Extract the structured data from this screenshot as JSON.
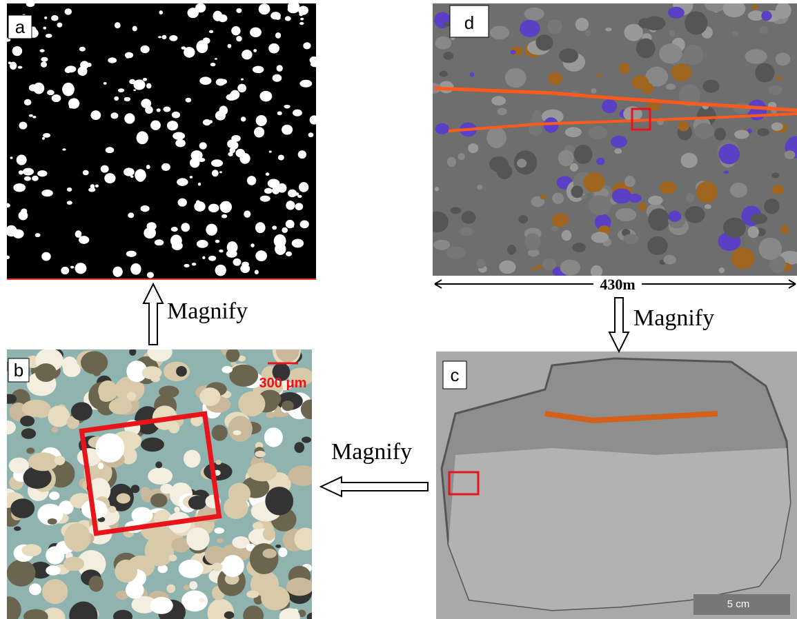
{
  "panels": [
    {
      "label": "a"
    },
    {
      "label": "b",
      "scale_bar": "300 μm"
    },
    {
      "label": "c",
      "scale_bar": "5 cm"
    },
    {
      "label": "d",
      "scale_bar": "430m"
    }
  ],
  "arrows": [
    {
      "label": "Magnify"
    },
    {
      "label": "Magnify"
    },
    {
      "label": "Magnify"
    }
  ]
}
